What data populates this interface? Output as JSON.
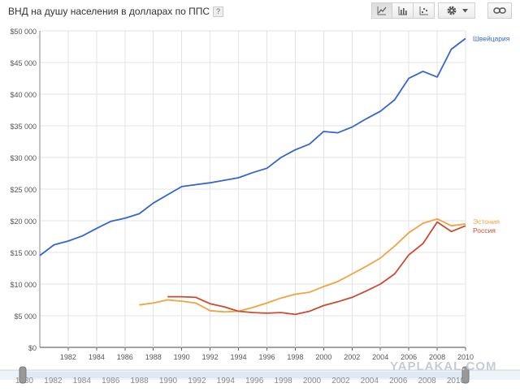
{
  "header": {
    "title": "ВНД на душу населения в долларах по ППС",
    "help_label": "?"
  },
  "toolbar": {
    "chart_types": [
      {
        "name": "line",
        "icon": "line-chart-icon",
        "active": true
      },
      {
        "name": "bar",
        "icon": "bar-chart-icon",
        "active": false
      },
      {
        "name": "scatter",
        "icon": "scatter-chart-icon",
        "active": false
      }
    ],
    "settings_icon": "gear-icon",
    "dropdown_icon": "chevron-down-icon",
    "link_icon": "link-icon"
  },
  "watermark": "YAPLAKAL.COM",
  "timeline": {
    "start_label": "1980",
    "end_label": "2010",
    "ticks": [
      "1980",
      "1982",
      "1984",
      "1986",
      "1988",
      "1990",
      "1992",
      "1994",
      "1996",
      "1998",
      "2000",
      "2002",
      "2004",
      "2006",
      "2008",
      "2010"
    ]
  },
  "chart_data": {
    "type": "line",
    "title": "ВНД на душу населения в долларах по ППС",
    "xlabel": "",
    "ylabel": "",
    "xlim": [
      1980,
      2010
    ],
    "ylim": [
      0,
      50000
    ],
    "x_ticks": [
      "1982",
      "1984",
      "1986",
      "1988",
      "1990",
      "1992",
      "1994",
      "1996",
      "1998",
      "2000",
      "2002",
      "2004",
      "2006",
      "2008",
      "2010"
    ],
    "y_ticks": [
      "$0",
      "$5 000",
      "$10 000",
      "$15 000",
      "$20 000",
      "$25 000",
      "$30 000",
      "$35 000",
      "$40 000",
      "$45 000",
      "$50 000"
    ],
    "grid": true,
    "legend": "end-of-line labels, right",
    "series": [
      {
        "name": "Швейцария",
        "color": "#3366cc",
        "x": [
          1980,
          1981,
          1982,
          1983,
          1984,
          1985,
          1986,
          1987,
          1988,
          1989,
          1990,
          1991,
          1992,
          1993,
          1994,
          1995,
          1996,
          1997,
          1998,
          1999,
          2000,
          2001,
          2002,
          2003,
          2004,
          2005,
          2006,
          2007,
          2008,
          2009,
          2010
        ],
        "values": [
          14500,
          16200,
          16800,
          17600,
          18800,
          19900,
          20400,
          21100,
          22800,
          24100,
          25400,
          25700,
          26000,
          26400,
          26800,
          27600,
          28300,
          30000,
          31200,
          32100,
          34100,
          33900,
          34800,
          36100,
          37300,
          39100,
          42500,
          43600,
          42700,
          47100,
          48800
        ]
      },
      {
        "name": "Эстония",
        "color": "#f1a340",
        "x": [
          1987,
          1988,
          1989,
          1990,
          1991,
          1992,
          1993,
          1994,
          1995,
          1996,
          1997,
          1998,
          1999,
          2000,
          2001,
          2002,
          2003,
          2004,
          2005,
          2006,
          2007,
          2008,
          2009,
          2010
        ],
        "values": [
          6700,
          7000,
          7500,
          7300,
          7000,
          5800,
          5600,
          5700,
          6300,
          7000,
          7800,
          8400,
          8700,
          9600,
          10400,
          11600,
          12800,
          14100,
          16000,
          18100,
          19600,
          20300,
          19200,
          19500
        ]
      },
      {
        "name": "Россия",
        "color": "#cc4a2f",
        "x": [
          1989,
          1990,
          1991,
          1992,
          1993,
          1994,
          1995,
          1996,
          1997,
          1998,
          1999,
          2000,
          2001,
          2002,
          2003,
          2004,
          2005,
          2006,
          2007,
          2008,
          2009,
          2010
        ],
        "values": [
          8000,
          8000,
          7900,
          6900,
          6400,
          5700,
          5500,
          5400,
          5500,
          5200,
          5700,
          6600,
          7200,
          7900,
          8900,
          10000,
          11600,
          14600,
          16400,
          19800,
          18300,
          19200
        ]
      }
    ]
  }
}
